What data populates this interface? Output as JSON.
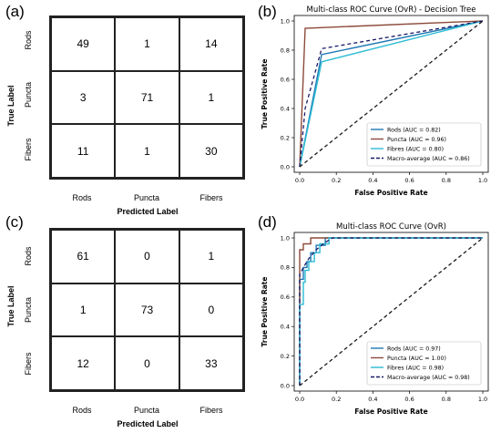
{
  "panels": {
    "a": "(a)",
    "b": "(b)",
    "c": "(c)",
    "d": "(d)"
  },
  "cm_a": {
    "row_labels": [
      "Rods",
      "Puncta",
      "Fibers"
    ],
    "col_labels": [
      "Rods",
      "Puncta",
      "Fibers"
    ],
    "ylabel": "True Label",
    "xlabel": "Predicted Label",
    "cells": [
      [
        "49",
        "1",
        "14"
      ],
      [
        "3",
        "71",
        "1"
      ],
      [
        "11",
        "1",
        "30"
      ]
    ]
  },
  "cm_c": {
    "row_labels": [
      "Rods",
      "Puncta",
      "Fibers"
    ],
    "col_labels": [
      "Rods",
      "Puncta",
      "Fibers"
    ],
    "ylabel": "True Label",
    "xlabel": "Predicted Label",
    "cells": [
      [
        "61",
        "0",
        "1"
      ],
      [
        "1",
        "73",
        "0"
      ],
      [
        "12",
        "0",
        "33"
      ]
    ]
  },
  "chart_data": [
    {
      "type": "table",
      "title": "",
      "ylabel": "True Label",
      "xlabel": "Predicted Label",
      "rows": [
        "Rods",
        "Puncta",
        "Fibers"
      ],
      "columns": [
        "Rods",
        "Puncta",
        "Fibers"
      ],
      "values": [
        [
          49,
          1,
          14
        ],
        [
          3,
          71,
          1
        ],
        [
          11,
          1,
          30
        ]
      ]
    },
    {
      "type": "line",
      "title": "Multi-class ROC Curve (OvR) - Decision Tree",
      "xlabel": "False Positive Rate",
      "ylabel": "True Positive Rate",
      "xlim": [
        0,
        1
      ],
      "ylim": [
        0,
        1
      ],
      "xticks": [
        "0.0",
        "0.2",
        "0.4",
        "0.6",
        "0.8",
        "1.0"
      ],
      "yticks": [
        "0.0",
        "0.2",
        "0.4",
        "0.6",
        "0.8",
        "1.0"
      ],
      "legend_position": "bottom-right",
      "series": [
        {
          "name": "Rods (AUC = 0.82)",
          "color": "#1f77b4",
          "dashed": false,
          "x": [
            0,
            0.12,
            1
          ],
          "y": [
            0,
            0.77,
            1
          ]
        },
        {
          "name": "Puncta (AUC = 0.96)",
          "color": "#8c4a3a",
          "dashed": false,
          "x": [
            0,
            0.03,
            1
          ],
          "y": [
            0,
            0.95,
            1
          ]
        },
        {
          "name": "Fibres (AUC = 0.80)",
          "color": "#2bbcd4",
          "dashed": false,
          "x": [
            0,
            0.12,
            1
          ],
          "y": [
            0,
            0.72,
            1
          ]
        },
        {
          "name": "Macro-average (AUC = 0.86)",
          "color": "#1a1a66",
          "dashed": true,
          "x": [
            0,
            0.03,
            0.12,
            1
          ],
          "y": [
            0,
            0.4,
            0.81,
            1
          ]
        },
        {
          "name": "",
          "color": "#1a1a1a",
          "dashed": true,
          "x": [
            0,
            1
          ],
          "y": [
            0,
            1
          ]
        }
      ]
    },
    {
      "type": "table",
      "title": "",
      "ylabel": "True Label",
      "xlabel": "Predicted Label",
      "rows": [
        "Rods",
        "Puncta",
        "Fibers"
      ],
      "columns": [
        "Rods",
        "Puncta",
        "Fibers"
      ],
      "values": [
        [
          61,
          0,
          1
        ],
        [
          1,
          73,
          0
        ],
        [
          12,
          0,
          33
        ]
      ]
    },
    {
      "type": "line",
      "title": "Multi-class ROC Curve (OvR)",
      "xlabel": "False Positive Rate",
      "ylabel": "True Positive Rate",
      "xlim": [
        0,
        1
      ],
      "ylim": [
        0,
        1
      ],
      "xticks": [
        "0.0",
        "0.2",
        "0.4",
        "0.6",
        "0.8",
        "1.0"
      ],
      "yticks": [
        "0.0",
        "0.2",
        "0.4",
        "0.6",
        "0.8",
        "1.0"
      ],
      "legend_position": "bottom-right",
      "series": [
        {
          "name": "Rods (AUC = 0.97)",
          "color": "#1f77b4",
          "dashed": false,
          "x": [
            0,
            0,
            0.02,
            0.02,
            0.04,
            0.04,
            0.06,
            0.06,
            0.09,
            0.09,
            0.14,
            0.14,
            1
          ],
          "y": [
            0,
            0.72,
            0.72,
            0.8,
            0.8,
            0.84,
            0.84,
            0.9,
            0.9,
            0.95,
            0.95,
            1.0,
            1.0
          ]
        },
        {
          "name": "Puncta (AUC = 1.00)",
          "color": "#8c4a3a",
          "dashed": false,
          "x": [
            0,
            0,
            0.02,
            0.02,
            0.06,
            0.06,
            1
          ],
          "y": [
            0,
            0.92,
            0.92,
            0.96,
            0.96,
            1.0,
            1.0
          ]
        },
        {
          "name": "Fibres (AUC = 0.98)",
          "color": "#2bbcd4",
          "dashed": false,
          "x": [
            0,
            0,
            0.02,
            0.02,
            0.03,
            0.03,
            0.05,
            0.05,
            0.08,
            0.08,
            0.11,
            0.11,
            0.16,
            0.16,
            1
          ],
          "y": [
            0,
            0.55,
            0.55,
            0.7,
            0.7,
            0.78,
            0.78,
            0.84,
            0.84,
            0.9,
            0.9,
            0.96,
            0.96,
            1.0,
            1.0
          ]
        },
        {
          "name": "Macro-average (AUC = 0.98)",
          "color": "#1a1a66",
          "dashed": true,
          "x": [
            0,
            0,
            0.02,
            0.05,
            0.09,
            0.14,
            0.18,
            1
          ],
          "y": [
            0,
            0.75,
            0.8,
            0.86,
            0.92,
            0.97,
            1.0,
            1.0
          ]
        },
        {
          "name": "",
          "color": "#1a1a1a",
          "dashed": true,
          "x": [
            0,
            1
          ],
          "y": [
            0,
            1
          ]
        }
      ]
    }
  ]
}
